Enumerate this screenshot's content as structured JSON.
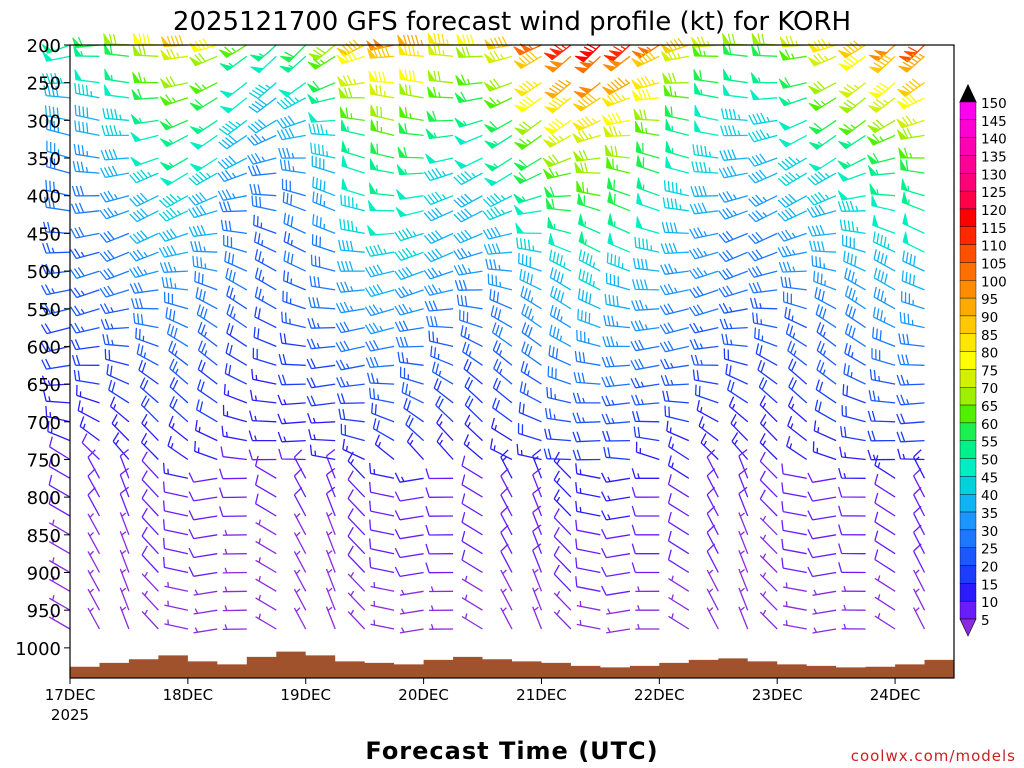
{
  "chart_data": {
    "type": "wind-barb-profile",
    "title": "2025121700 GFS forecast wind profile (kt) for KORH",
    "xlabel": "Forecast Time (UTC)",
    "watermark": "coolwx.com/models",
    "x_ticks": [
      "17DEC",
      "18DEC",
      "19DEC",
      "20DEC",
      "21DEC",
      "22DEC",
      "23DEC",
      "24DEC"
    ],
    "x_year": "2025",
    "x_range_days": [
      0,
      7.5
    ],
    "y_unit": "hPa",
    "y_ticks": [
      "200",
      "250",
      "300",
      "350",
      "400",
      "450",
      "500",
      "550",
      "600",
      "650",
      "700",
      "750",
      "800",
      "850",
      "900",
      "950",
      "1000"
    ],
    "y_range": [
      200,
      1040
    ],
    "colorbar_labels": [
      "5",
      "10",
      "15",
      "20",
      "25",
      "30",
      "35",
      "40",
      "45",
      "50",
      "55",
      "60",
      "65",
      "70",
      "75",
      "80",
      "85",
      "90",
      "95",
      "100",
      "105",
      "110",
      "115",
      "120",
      "125",
      "130",
      "135",
      "140",
      "145",
      "150"
    ],
    "colorbar_colors": [
      "#8a2be2",
      "#6a1cff",
      "#2a1cff",
      "#1c3cff",
      "#1c58ff",
      "#1c78ff",
      "#1c96ff",
      "#10b4f4",
      "#00d2dc",
      "#00eec2",
      "#00f08c",
      "#1cf050",
      "#50f000",
      "#9cf000",
      "#d2f000",
      "#ffff00",
      "#ffe600",
      "#ffc800",
      "#ffaa00",
      "#ff8c00",
      "#ff6e00",
      "#ff5000",
      "#ff2800",
      "#ff0000",
      "#ff0046",
      "#ff0078",
      "#ff0096",
      "#ff00b4",
      "#ff00d2",
      "#ff00f0"
    ],
    "colorbar_over": "#000000",
    "levels": [
      200,
      215,
      250,
      270,
      300,
      320,
      350,
      370,
      400,
      420,
      450,
      475,
      500,
      525,
      550,
      575,
      600,
      625,
      650,
      675,
      700,
      725,
      750,
      775,
      800,
      825,
      850,
      875,
      900,
      925,
      950,
      975
    ],
    "times_h": [
      0,
      6,
      12,
      18,
      24,
      30,
      36,
      42,
      48,
      54,
      60,
      66,
      72,
      78,
      84,
      90,
      96,
      102,
      108,
      114,
      120,
      126,
      132,
      138,
      144,
      150,
      156,
      162,
      168,
      174,
      180
    ],
    "speed_by_level_kt": [
      80,
      70,
      65,
      60,
      55,
      50,
      48,
      45,
      42,
      40,
      38,
      36,
      34,
      32,
      30,
      28,
      26,
      24,
      22,
      20,
      18,
      16,
      14,
      12,
      10,
      10,
      8,
      8,
      8,
      6,
      5,
      5
    ],
    "speed_by_time_scale": [
      0.7,
      0.75,
      0.85,
      1.0,
      1.1,
      1.0,
      0.8,
      0.7,
      0.75,
      0.9,
      1.15,
      1.25,
      1.2,
      1.05,
      1.0,
      1.1,
      1.3,
      1.45,
      1.5,
      1.45,
      1.3,
      1.1,
      0.95,
      0.85,
      0.85,
      0.95,
      1.05,
      1.15,
      1.25,
      1.35,
      1.4
    ],
    "terrain_pressure_hpa": [
      1025,
      1020,
      1015,
      1010,
      1018,
      1022,
      1012,
      1005,
      1010,
      1018,
      1020,
      1022,
      1016,
      1012,
      1015,
      1018,
      1020,
      1024,
      1026,
      1024,
      1020,
      1016,
      1014,
      1018,
      1022,
      1024,
      1026,
      1025,
      1022,
      1016,
      1012
    ]
  }
}
